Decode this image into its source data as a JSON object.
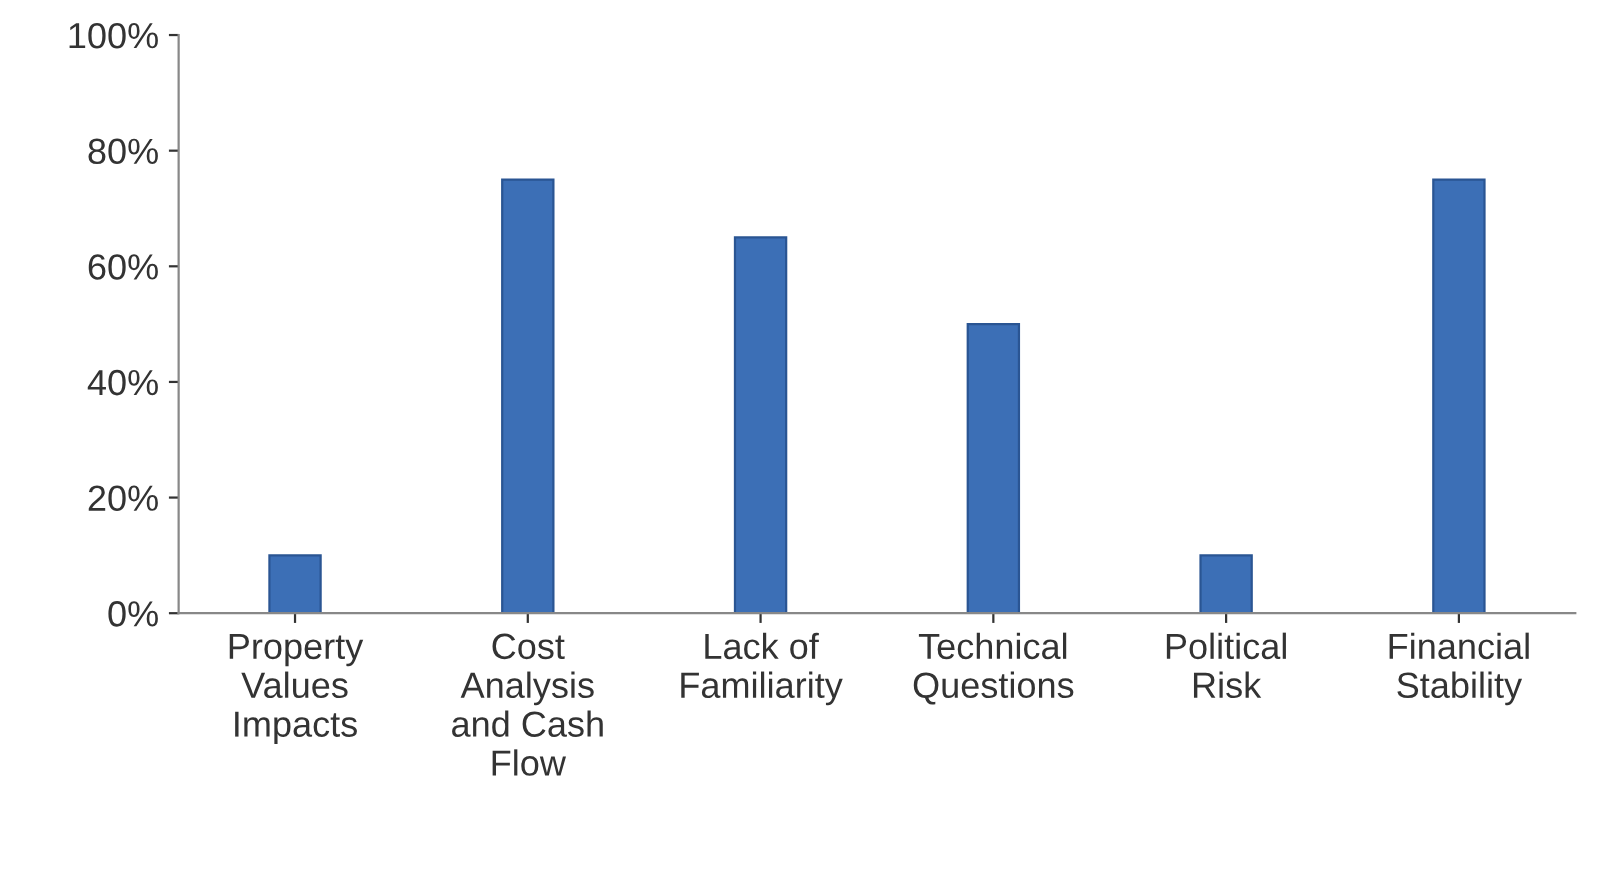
{
  "chart_data": {
    "type": "bar",
    "categories": [
      "Property\nValues\nImpacts",
      "Cost\nAnalysis\nand Cash\nFlow",
      "Lack of\nFamiliarity",
      "Technical\nQuestions",
      "Political\nRisk",
      "Financial\nStability"
    ],
    "values": [
      10,
      75,
      65,
      50,
      10,
      75
    ],
    "color": "#3c6fb6",
    "ylim": [
      0,
      100
    ],
    "yticks": [
      {
        "value": 0,
        "label": "0%"
      },
      {
        "value": 20,
        "label": "20%"
      },
      {
        "value": 40,
        "label": "40%"
      },
      {
        "value": 60,
        "label": "60%"
      },
      {
        "value": 80,
        "label": "80%"
      },
      {
        "value": 100,
        "label": "100%"
      }
    ],
    "grid": false,
    "legend": false
  }
}
